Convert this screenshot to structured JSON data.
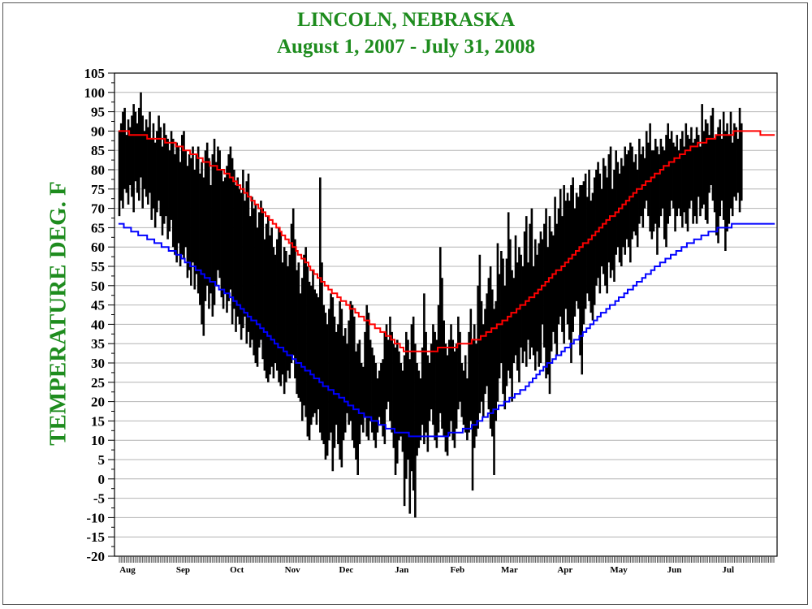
{
  "colors": {
    "title": "#1e8c1e",
    "daily": "#000000",
    "normal_high": "#ff0000",
    "normal_low": "#0000ff",
    "grid": "#b4b4b4"
  },
  "chart_data": {
    "type": "line",
    "title": "LINCOLN, NEBRASKA",
    "subtitle": "August 1, 2007 - July 31,  2008",
    "ylabel": "TEMPERATURE DEG. F",
    "xlabel": "",
    "ylim": [
      -20,
      105
    ],
    "ytick_step": 5,
    "grid": true,
    "x_days": 366,
    "month_labels": [
      "Aug",
      "Sep",
      "Oct",
      "Nov",
      "Dec",
      "Jan",
      "Feb",
      "Mar",
      "Apr",
      "May",
      "Jun",
      "Jul"
    ],
    "month_start_days": [
      0,
      31,
      61,
      92,
      122,
      153,
      184,
      213,
      244,
      274,
      305,
      335
    ],
    "series": [
      {
        "key": "daily_range",
        "style": "vertical bars from daily low to daily high",
        "daily_high": [
          90,
          92,
          95,
          96,
          89,
          93,
          91,
          94,
          97,
          95,
          92,
          96,
          100,
          94,
          90,
          93,
          91,
          95,
          88,
          92,
          87,
          90,
          94,
          91,
          86,
          92,
          89,
          88,
          85,
          90,
          88,
          84,
          87,
          86,
          82,
          89,
          90,
          85,
          81,
          84,
          83,
          86,
          80,
          84,
          86,
          79,
          82,
          78,
          85,
          87,
          83,
          76,
          84,
          88,
          82,
          86,
          85,
          80,
          77,
          78,
          81,
          84,
          86,
          83,
          80,
          76,
          78,
          75,
          74,
          80,
          72,
          77,
          79,
          68,
          73,
          70,
          71,
          65,
          69,
          72,
          70,
          62,
          66,
          68,
          63,
          65,
          60,
          58,
          62,
          65,
          64,
          56,
          60,
          59,
          55,
          58,
          66,
          70,
          62,
          54,
          56,
          48,
          52,
          58,
          60,
          55,
          51,
          50,
          54,
          49,
          48,
          47,
          78,
          56,
          45,
          43,
          40,
          44,
          48,
          47,
          42,
          38,
          40,
          46,
          44,
          37,
          39,
          35,
          41,
          46,
          45,
          42,
          33,
          35,
          36,
          30,
          29,
          38,
          45,
          43,
          36,
          34,
          32,
          30,
          26,
          28,
          30,
          31,
          38,
          40,
          36,
          42,
          38,
          35,
          34,
          36,
          33,
          30,
          28,
          32,
          38,
          36,
          31,
          40,
          42,
          35,
          30,
          28,
          26,
          34,
          48,
          38,
          32,
          30,
          35,
          40,
          38,
          36,
          45,
          60,
          52,
          41,
          35,
          32,
          36,
          40,
          36,
          33,
          35,
          42,
          38,
          30,
          28,
          32,
          26,
          38,
          44,
          36,
          40,
          35,
          50,
          58,
          46,
          40,
          44,
          48,
          52,
          55,
          49,
          44,
          46,
          61,
          53,
          59,
          57,
          50,
          57,
          69,
          62,
          54,
          52,
          63,
          56,
          60,
          58,
          55,
          64,
          68,
          56,
          66,
          70,
          55,
          62,
          58,
          61,
          64,
          62,
          66,
          70,
          60,
          68,
          64,
          63,
          73,
          66,
          70,
          75,
          68,
          76,
          72,
          74,
          72,
          76,
          78,
          70,
          74,
          73,
          76,
          76,
          77,
          79,
          73,
          80,
          72,
          74,
          78,
          80,
          82,
          79,
          75,
          83,
          81,
          78,
          84,
          86,
          75,
          80,
          85,
          82,
          79,
          83,
          81,
          86,
          84,
          85,
          87,
          86,
          82,
          84,
          80,
          88,
          84,
          86,
          83,
          90,
          87,
          92,
          85,
          85,
          88,
          86,
          84,
          88,
          86,
          85,
          89,
          92,
          88,
          90,
          87,
          86,
          89,
          85,
          88,
          90,
          86,
          92,
          89,
          88,
          91,
          87,
          88,
          91,
          89,
          86,
          97,
          90,
          93,
          92,
          89,
          94,
          96,
          88,
          89,
          91,
          93,
          88,
          95,
          90,
          92,
          89,
          95,
          87,
          92,
          91,
          88,
          96,
          92
        ],
        "daily_low": [
          68,
          72,
          70,
          75,
          74,
          71,
          76,
          73,
          69,
          77,
          74,
          72,
          78,
          70,
          75,
          73,
          71,
          74,
          67,
          70,
          65,
          69,
          72,
          68,
          63,
          66,
          68,
          62,
          64,
          67,
          60,
          58,
          56,
          61,
          55,
          58,
          57,
          60,
          52,
          54,
          50,
          56,
          49,
          53,
          48,
          45,
          40,
          37,
          46,
          50,
          44,
          48,
          42,
          45,
          50,
          54,
          52,
          47,
          44,
          48,
          43,
          46,
          49,
          40,
          44,
          38,
          42,
          40,
          36,
          39,
          42,
          35,
          38,
          34,
          36,
          32,
          30,
          29,
          34,
          36,
          31,
          28,
          26,
          25,
          27,
          29,
          26,
          30,
          28,
          25,
          24,
          27,
          22,
          25,
          28,
          26,
          30,
          32,
          26,
          22,
          21,
          20,
          15,
          19,
          16,
          11,
          10,
          14,
          16,
          17,
          14,
          18,
          12,
          10,
          9,
          5,
          6,
          10,
          12,
          2,
          8,
          14,
          9,
          5,
          3,
          10,
          12,
          17,
          14,
          15,
          10,
          8,
          5,
          1,
          9,
          14,
          12,
          16,
          11,
          10,
          15,
          12,
          10,
          8,
          12,
          16,
          14,
          11,
          9,
          18,
          20,
          15,
          12,
          8,
          1,
          4,
          10,
          11,
          7,
          -7,
          0,
          5,
          -9,
          2,
          -3,
          -10,
          6,
          8,
          10,
          14,
          9,
          12,
          7,
          15,
          18,
          14,
          10,
          8,
          12,
          17,
          13,
          11,
          7,
          6,
          11,
          15,
          10,
          8,
          13,
          18,
          20,
          16,
          14,
          12,
          10,
          12,
          15,
          -3,
          8,
          11,
          13,
          17,
          20,
          16,
          22,
          24,
          18,
          13,
          11,
          1,
          15,
          20,
          26,
          30,
          22,
          18,
          24,
          28,
          26,
          20,
          30,
          32,
          28,
          25,
          34,
          30,
          33,
          29,
          36,
          31,
          34,
          32,
          28,
          33,
          29,
          30,
          40,
          34,
          26,
          27,
          22,
          33,
          38,
          35,
          32,
          40,
          42,
          38,
          35,
          44,
          40,
          36,
          30,
          38,
          42,
          46,
          44,
          32,
          27,
          40,
          44,
          48,
          46,
          43,
          41,
          45,
          50,
          52,
          48,
          55,
          53,
          50,
          48,
          56,
          52,
          54,
          51,
          58,
          60,
          56,
          55,
          60,
          58,
          62,
          60,
          56,
          62,
          64,
          63,
          60,
          66,
          68,
          65,
          70,
          72,
          68,
          64,
          62,
          64,
          66,
          58,
          65,
          68,
          70,
          62,
          60,
          66,
          68,
          72,
          70,
          64,
          68,
          70,
          68,
          65,
          69,
          66,
          64,
          70,
          72,
          66,
          68,
          66,
          73,
          68,
          70,
          71,
          67,
          66,
          74,
          76,
          72,
          69,
          63,
          61,
          68,
          72,
          67,
          59,
          64,
          66,
          70,
          68,
          73,
          72,
          74,
          69,
          72,
          73,
          70,
          71
        ]
      },
      {
        "key": "normal_high",
        "knots": [
          [
            0,
            90
          ],
          [
            30,
            87
          ],
          [
            60,
            79
          ],
          [
            90,
            64
          ],
          [
            115,
            50
          ],
          [
            135,
            42
          ],
          [
            150,
            37
          ],
          [
            160,
            33
          ],
          [
            170,
            33
          ],
          [
            185,
            34
          ],
          [
            200,
            36
          ],
          [
            215,
            41
          ],
          [
            230,
            47
          ],
          [
            245,
            54
          ],
          [
            260,
            61
          ],
          [
            275,
            68
          ],
          [
            290,
            75
          ],
          [
            305,
            81
          ],
          [
            320,
            86
          ],
          [
            335,
            89
          ],
          [
            350,
            90
          ],
          [
            365,
            89
          ]
        ]
      },
      {
        "key": "normal_low",
        "knots": [
          [
            0,
            66
          ],
          [
            30,
            59
          ],
          [
            60,
            48
          ],
          [
            90,
            34
          ],
          [
            115,
            24
          ],
          [
            135,
            17
          ],
          [
            150,
            13
          ],
          [
            165,
            11
          ],
          [
            180,
            11
          ],
          [
            195,
            13
          ],
          [
            210,
            18
          ],
          [
            225,
            23
          ],
          [
            240,
            30
          ],
          [
            255,
            36
          ],
          [
            270,
            43
          ],
          [
            285,
            49
          ],
          [
            300,
            55
          ],
          [
            315,
            60
          ],
          [
            330,
            64
          ],
          [
            345,
            66
          ],
          [
            365,
            66
          ]
        ]
      }
    ]
  }
}
